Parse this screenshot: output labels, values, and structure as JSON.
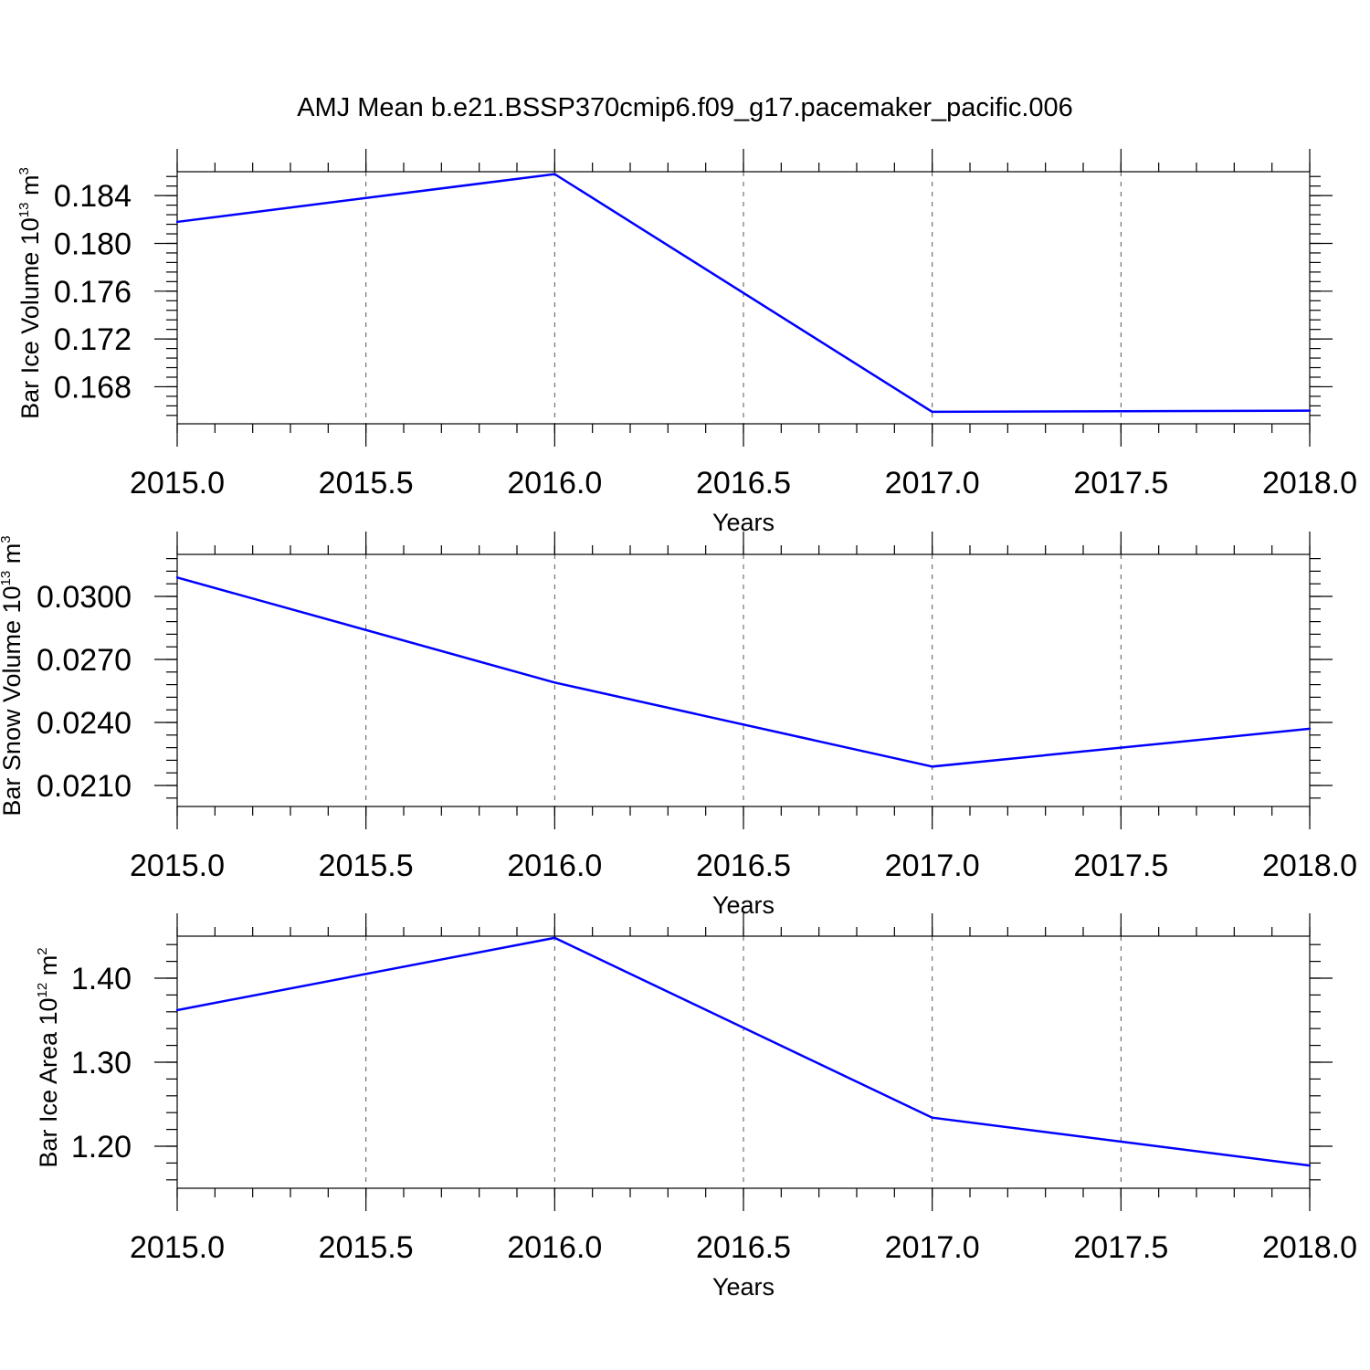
{
  "title": "AMJ Mean b.e21.BSSP370cmip6.f09_g17.pacemaker_pacific.006",
  "colors": {
    "series": "#0000ff",
    "axis": "#000000",
    "grid": "#555555"
  },
  "chart_data": [
    {
      "type": "line",
      "xlabel": "Years",
      "ylabel": {
        "text": "Bar Ice Volume 10",
        "sup": "13",
        "unit": " m",
        "unit_sup": "3"
      },
      "xlim": [
        2015.0,
        2018.0
      ],
      "ylim": [
        0.1649,
        0.186
      ],
      "xticks": [
        "2015.0",
        "2015.5",
        "2016.0",
        "2016.5",
        "2017.0",
        "2017.5",
        "2018.0"
      ],
      "yticks": [
        "0.168",
        "0.172",
        "0.176",
        "0.180",
        "0.184"
      ],
      "grid": "vertical dashed",
      "x": [
        2015,
        2016,
        2017,
        2018
      ],
      "values": [
        0.1818,
        0.1858,
        0.1659,
        0.166
      ]
    },
    {
      "type": "line",
      "xlabel": "Years",
      "ylabel": {
        "text": "Bar Snow Volume 10",
        "sup": "13",
        "unit": " m",
        "unit_sup": "3"
      },
      "xlim": [
        2015.0,
        2018.0
      ],
      "ylim": [
        0.02,
        0.032
      ],
      "xticks": [
        "2015.0",
        "2015.5",
        "2016.0",
        "2016.5",
        "2017.0",
        "2017.5",
        "2018.0"
      ],
      "yticks": [
        "0.0210",
        "0.0240",
        "0.0270",
        "0.0300"
      ],
      "grid": "vertical dashed",
      "x": [
        2015,
        2016,
        2017,
        2018
      ],
      "values": [
        0.0309,
        0.0259,
        0.0219,
        0.0237
      ]
    },
    {
      "type": "line",
      "xlabel": "Years",
      "ylabel": {
        "text": "Bar Ice Area 10",
        "sup": "12",
        "unit": " m",
        "unit_sup": "2"
      },
      "xlim": [
        2015.0,
        2018.0
      ],
      "ylim": [
        1.15,
        1.45
      ],
      "xticks": [
        "2015.0",
        "2015.5",
        "2016.0",
        "2016.5",
        "2017.0",
        "2017.5",
        "2018.0"
      ],
      "yticks": [
        "1.20",
        "1.30",
        "1.40"
      ],
      "grid": "vertical dashed",
      "x": [
        2015,
        2016,
        2017,
        2018
      ],
      "values": [
        1.362,
        1.448,
        1.234,
        1.177
      ]
    }
  ]
}
